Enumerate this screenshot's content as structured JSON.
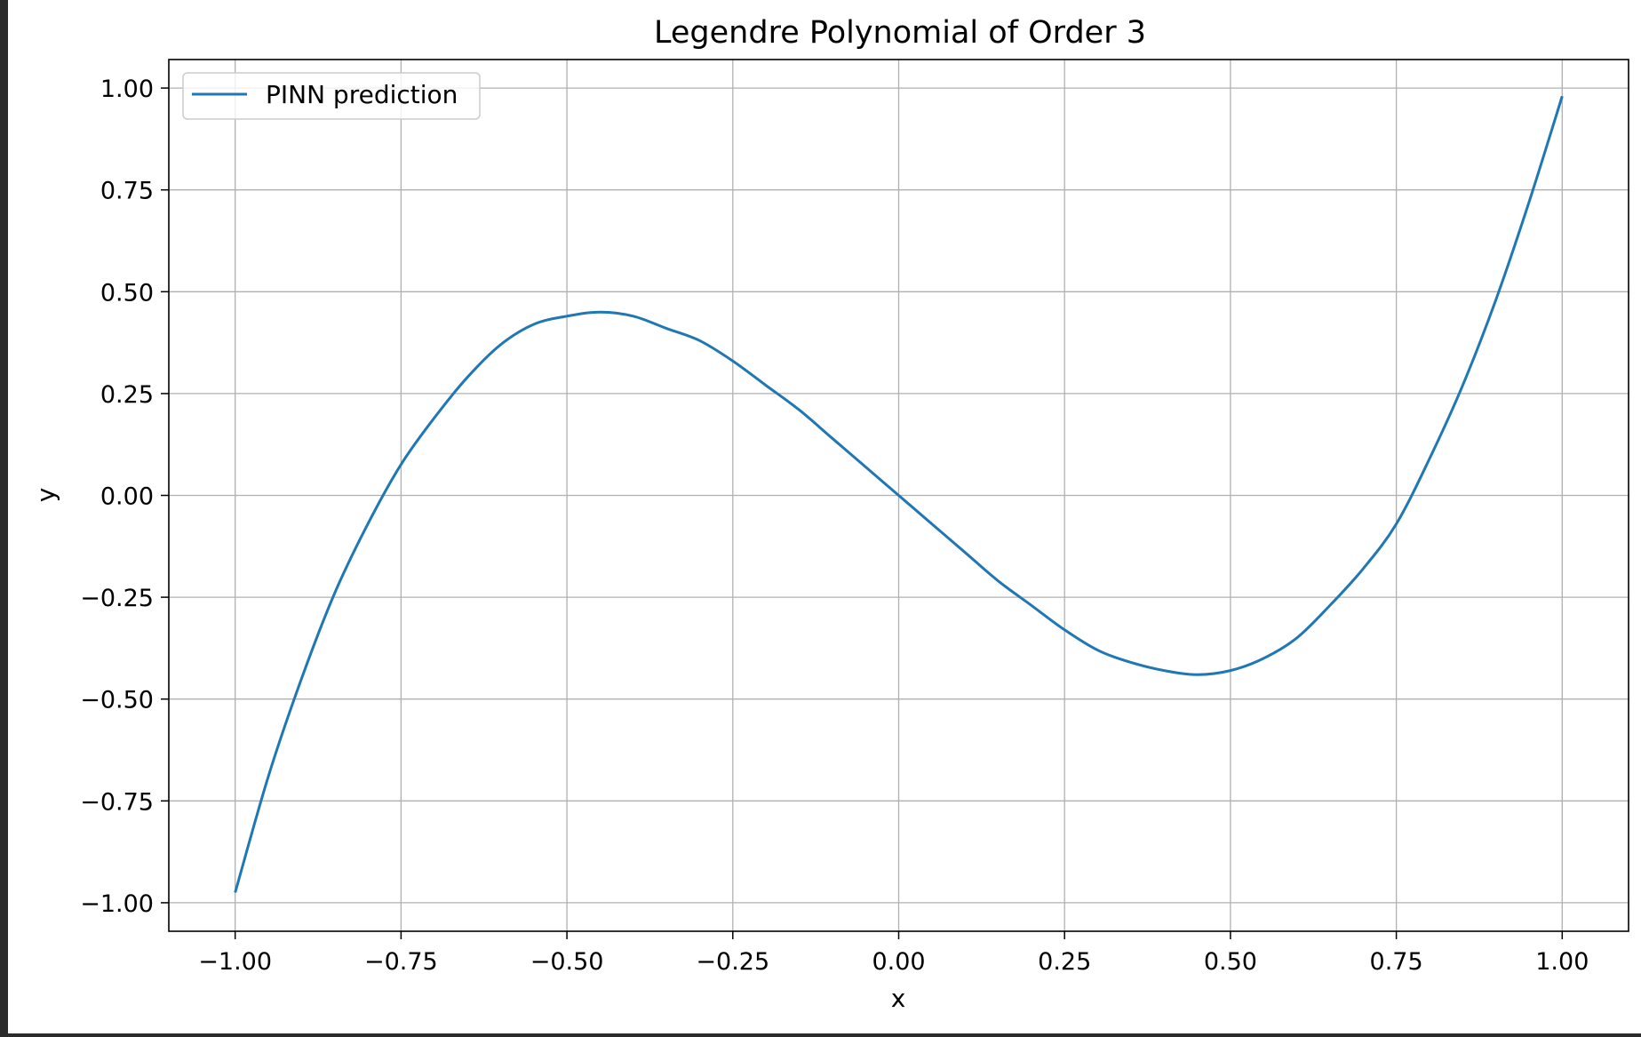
{
  "chart_data": {
    "type": "line",
    "title": "Legendre Polynomial of Order 3",
    "xlabel": "x",
    "ylabel": "y",
    "xlim": [
      -1.1,
      1.1
    ],
    "ylim": [
      -1.07,
      1.07
    ],
    "grid": true,
    "legend_position": "upper-left",
    "x_ticks": [
      -1.0,
      -0.75,
      -0.5,
      -0.25,
      0.0,
      0.25,
      0.5,
      0.75,
      1.0
    ],
    "x_tick_labels": [
      "−1.00",
      "−0.75",
      "−0.50",
      "−0.25",
      "0.00",
      "0.25",
      "0.50",
      "0.75",
      "1.00"
    ],
    "y_ticks": [
      1.0,
      0.75,
      0.5,
      0.25,
      0.0,
      -0.25,
      -0.5,
      -0.75,
      -1.0
    ],
    "y_tick_labels": [
      "1.00",
      "0.75",
      "0.50",
      "0.25",
      "0.00",
      "−0.25",
      "−0.50",
      "−0.75",
      "−1.00"
    ],
    "series": [
      {
        "name": "PINN prediction",
        "color": "#1f77b4",
        "x": [
          -1.0,
          -0.95,
          -0.9,
          -0.85,
          -0.8,
          -0.75,
          -0.7,
          -0.65,
          -0.6,
          -0.55,
          -0.5,
          -0.45,
          -0.4,
          -0.35,
          -0.3,
          -0.25,
          -0.2,
          -0.15,
          -0.1,
          -0.05,
          0.0,
          0.05,
          0.1,
          0.15,
          0.2,
          0.25,
          0.3,
          0.35,
          0.4,
          0.45,
          0.5,
          0.55,
          0.6,
          0.65,
          0.7,
          0.75,
          0.8,
          0.85,
          0.9,
          0.95,
          1.0
        ],
        "y": [
          -0.975,
          -0.69,
          -0.45,
          -0.24,
          -0.07,
          0.076,
          0.19,
          0.29,
          0.37,
          0.42,
          0.44,
          0.45,
          0.44,
          0.41,
          0.38,
          0.33,
          0.27,
          0.21,
          0.14,
          0.07,
          0.0,
          -0.07,
          -0.14,
          -0.21,
          -0.27,
          -0.33,
          -0.38,
          -0.41,
          -0.43,
          -0.44,
          -0.43,
          -0.4,
          -0.35,
          -0.27,
          -0.18,
          -0.07,
          0.09,
          0.27,
          0.48,
          0.72,
          0.98
        ]
      }
    ]
  }
}
